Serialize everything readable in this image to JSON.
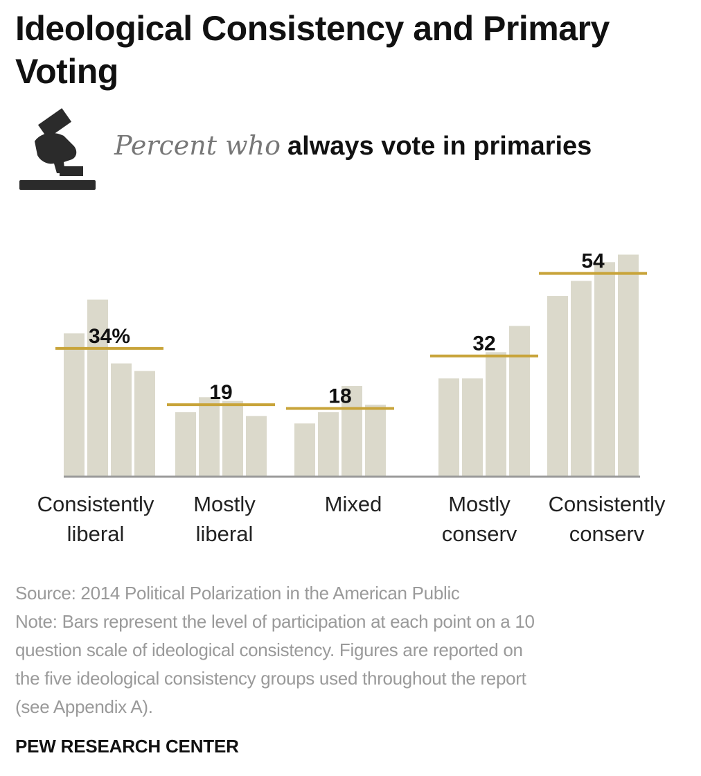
{
  "title": "Ideological Consistency and Primary Voting",
  "subtitle": {
    "italic": "Percent who",
    "bold": "always vote in primaries"
  },
  "chart_data": {
    "type": "bar",
    "ylim": [
      0,
      65
    ],
    "grid": false,
    "legend": "none",
    "colors": {
      "bar": "#dbd9cb",
      "average_line": "#c8a43a",
      "axis": "#9a9a9a"
    },
    "groups": [
      {
        "label": "Consistently\nliberal",
        "average_label": "34%",
        "average": 34,
        "bars": [
          38,
          47,
          30,
          28
        ]
      },
      {
        "label": "Mostly\nliberal",
        "average_label": "19",
        "average": 19,
        "bars": [
          17,
          21,
          20,
          16
        ]
      },
      {
        "label": "Mixed",
        "average_label": "18",
        "average": 18,
        "bars": [
          14,
          17,
          24,
          19
        ]
      },
      {
        "label": "Mostly\nconserv",
        "average_label": "32",
        "average": 32,
        "bars": [
          26,
          26,
          33,
          40
        ]
      },
      {
        "label": "Consistently\nconserv",
        "average_label": "54",
        "average": 54,
        "bars": [
          48,
          52,
          57,
          59
        ]
      }
    ]
  },
  "footnote": {
    "source": "Source: 2014 Political Polarization in the American Public",
    "note_lines": [
      "Note: Bars represent the level of participation at each point on a 10",
      "question scale of ideological consistency. Figures are reported on",
      "the five ideological consistency groups used throughout the report",
      "(see Appendix A)."
    ]
  },
  "org": "PEW RESEARCH CENTER",
  "icon": "ballot-box-icon"
}
